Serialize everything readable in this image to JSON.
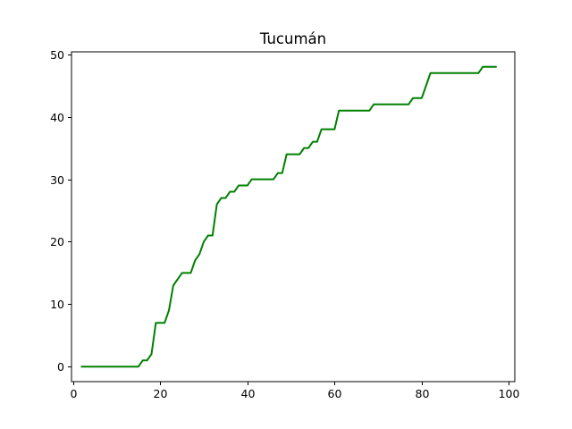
{
  "chart_data": {
    "type": "line",
    "title": "Tucumán",
    "xlabel": "",
    "ylabel": "",
    "xlim": [
      -0.35,
      101.35
    ],
    "ylim": [
      -2.4,
      50.4
    ],
    "xticks": [
      0,
      20,
      40,
      60,
      80,
      100
    ],
    "yticks": [
      0,
      10,
      20,
      30,
      40,
      50
    ],
    "xtick_labels": [
      "0",
      "20",
      "40",
      "60",
      "80",
      "100"
    ],
    "ytick_labels": [
      "0",
      "10",
      "20",
      "30",
      "40",
      "50"
    ],
    "grid": false,
    "legend": "none",
    "series": [
      {
        "color": "#008000",
        "x": [
          2,
          3,
          4,
          5,
          6,
          7,
          8,
          9,
          10,
          11,
          12,
          13,
          14,
          15,
          16,
          17,
          18,
          19,
          20,
          21,
          22,
          23,
          24,
          25,
          26,
          27,
          28,
          29,
          30,
          31,
          32,
          33,
          34,
          35,
          36,
          37,
          38,
          39,
          40,
          41,
          42,
          43,
          44,
          45,
          46,
          47,
          48,
          49,
          50,
          51,
          52,
          53,
          54,
          55,
          56,
          57,
          58,
          59,
          60,
          61,
          62,
          63,
          64,
          65,
          66,
          67,
          68,
          69,
          70,
          71,
          72,
          73,
          74,
          75,
          76,
          77,
          78,
          79,
          80,
          81,
          82,
          83,
          84,
          85,
          86,
          87,
          88,
          89,
          90,
          91,
          92,
          93,
          94,
          95,
          96,
          97
        ],
        "y": [
          0,
          0,
          0,
          0,
          0,
          0,
          0,
          0,
          0,
          0,
          0,
          0,
          0,
          0,
          1,
          1,
          2,
          7,
          7,
          7,
          9,
          13,
          14,
          15,
          15,
          15,
          17,
          18,
          20,
          21,
          21,
          26,
          27,
          27,
          28,
          28,
          29,
          29,
          29,
          30,
          30,
          30,
          30,
          30,
          30,
          31,
          31,
          34,
          34,
          34,
          34,
          35,
          35,
          36,
          36,
          38,
          38,
          38,
          38,
          41,
          41,
          41,
          41,
          41,
          41,
          41,
          41,
          42,
          42,
          42,
          42,
          42,
          42,
          42,
          42,
          42,
          43,
          43,
          43,
          45,
          47,
          47,
          47,
          47,
          47,
          47,
          47,
          47,
          47,
          47,
          47,
          47,
          48,
          48,
          48,
          48
        ]
      }
    ]
  }
}
